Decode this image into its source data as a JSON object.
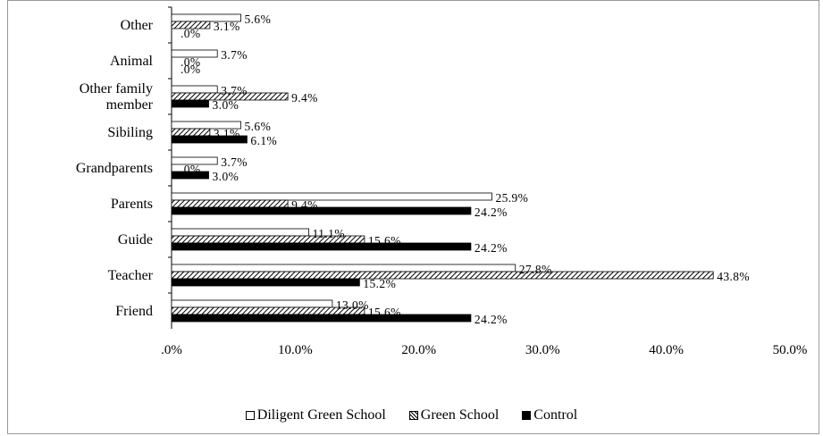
{
  "chart_data": {
    "type": "bar",
    "orientation": "horizontal",
    "categories": [
      "Other",
      "Animal",
      "Other family member",
      "Sibiling",
      "Grandparents",
      "Parents",
      "Guide",
      "Teacher",
      "Friend"
    ],
    "category_labels": [
      [
        "Other"
      ],
      [
        "Animal"
      ],
      [
        "Other family",
        "member"
      ],
      [
        "Sibiling"
      ],
      [
        "Grandparents"
      ],
      [
        "Parents"
      ],
      [
        "Guide"
      ],
      [
        "Teacher"
      ],
      [
        "Friend"
      ]
    ],
    "series": [
      {
        "name": "Diligent Green School",
        "fill": "white",
        "values": [
          5.6,
          3.7,
          3.7,
          5.6,
          3.7,
          25.9,
          11.1,
          27.8,
          13.0
        ],
        "labels": [
          "5.6%",
          "3.7%",
          "3.7%",
          "5.6%",
          "3.7%",
          "25.9%",
          "11.1%",
          "27.8%",
          "13.0%"
        ]
      },
      {
        "name": "Green School",
        "fill": "hatched",
        "values": [
          3.1,
          0,
          9.4,
          3.1,
          0,
          9.4,
          15.6,
          43.8,
          15.6
        ],
        "labels": [
          "3.1%",
          ".0%",
          "9.4%",
          "3.1%",
          ".0%",
          "9.4%",
          "15.6%",
          "43.8%",
          "15.6%"
        ]
      },
      {
        "name": "Control",
        "fill": "black",
        "values": [
          0,
          0,
          3.0,
          6.1,
          3.0,
          24.2,
          24.2,
          15.2,
          24.2
        ],
        "labels": [
          ".0%",
          ".0%",
          "3.0%",
          "6.1%",
          "3.0%",
          "24.2%",
          "24.2%",
          "15.2%",
          "24.2%"
        ]
      }
    ],
    "xlim": [
      0,
      50
    ],
    "xticks": [
      ".0%",
      "10.0%",
      "20.0%",
      "30.0%",
      "40.0%",
      "50.0%"
    ],
    "grid": false,
    "legend_position": "bottom",
    "colors": {
      "bar_edge": "#000000",
      "control": "#000000",
      "diligent": "#ffffff"
    }
  },
  "legend": {
    "dgs": "Diligent Green School",
    "gs": "Green School",
    "ctl": "Control"
  }
}
